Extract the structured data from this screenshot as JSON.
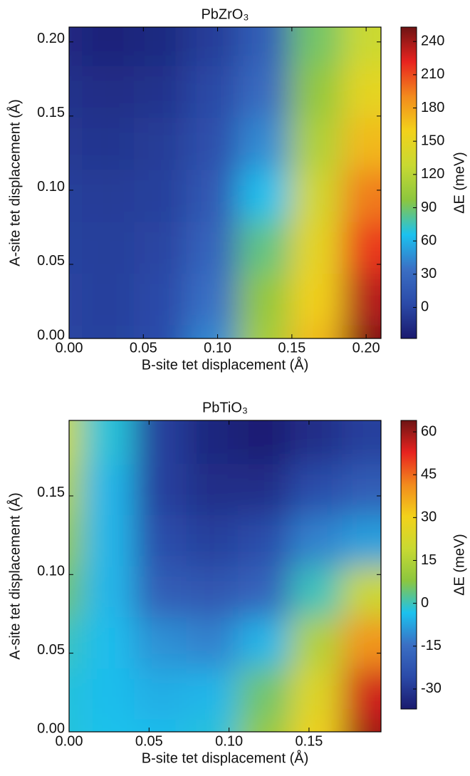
{
  "chart_data": [
    {
      "type": "heatmap",
      "title": "PbZrO₃",
      "xlabel": "B-site tet displacement (Å)",
      "ylabel": "A-site tet displacement (Å)",
      "colorbar_label": "ΔE (meV)",
      "x": [
        0,
        0.035,
        0.07,
        0.105,
        0.14,
        0.175,
        0.21
      ],
      "y": [
        0,
        0.035,
        0.07,
        0.105,
        0.14,
        0.175,
        0.21
      ],
      "z": [
        [
          0,
          -2,
          5,
          45,
          110,
          170,
          250
        ],
        [
          0,
          -3,
          3,
          35,
          100,
          160,
          235
        ],
        [
          -2,
          -4,
          0,
          25,
          85,
          150,
          215
        ],
        [
          -4,
          -6,
          -3,
          15,
          65,
          135,
          195
        ],
        [
          -8,
          -10,
          -6,
          8,
          45,
          115,
          170
        ],
        [
          -12,
          -15,
          -12,
          2,
          30,
          100,
          150
        ],
        [
          -16,
          -22,
          -18,
          -5,
          20,
          90,
          130
        ]
      ],
      "xlim": [
        0,
        0.21
      ],
      "ylim": [
        0,
        0.21
      ],
      "xticks": [
        {
          "value": 0,
          "label": "0.00"
        },
        {
          "value": 0.05,
          "label": "0.05"
        },
        {
          "value": 0.1,
          "label": "0.10"
        },
        {
          "value": 0.15,
          "label": "0.15"
        },
        {
          "value": 0.2,
          "label": "0.20"
        }
      ],
      "yticks": [
        {
          "value": 0,
          "label": "0.00"
        },
        {
          "value": 0.05,
          "label": "0.05"
        },
        {
          "value": 0.1,
          "label": "0.10"
        },
        {
          "value": 0.15,
          "label": "0.15"
        },
        {
          "value": 0.2,
          "label": "0.20"
        }
      ],
      "clim": [
        -28,
        253
      ],
      "cticks": [
        0,
        30,
        60,
        90,
        120,
        150,
        180,
        210,
        240
      ],
      "colormap": [
        "#1a1a6e",
        "#2b4aa8",
        "#3a6fc4",
        "#1bc2ef",
        "#8cc63f",
        "#c8d932",
        "#f2d21b",
        "#f28a1d",
        "#e8231f",
        "#6e1414"
      ]
    },
    {
      "type": "heatmap",
      "title": "PbTiO₃",
      "xlabel": "B-site tet displacement (Å)",
      "ylabel": "A-site tet displacement (Å)",
      "colorbar_label": "ΔE (meV)",
      "x": [
        0,
        0.0325,
        0.065,
        0.0975,
        0.13,
        0.1625,
        0.195
      ],
      "y": [
        0,
        0.0325,
        0.065,
        0.0975,
        0.13,
        0.1625,
        0.195
      ],
      "z": [
        [
          -2,
          -3,
          -4,
          -2,
          10,
          30,
          60
        ],
        [
          -2,
          -4,
          -6,
          -5,
          5,
          25,
          55
        ],
        [
          0,
          -4,
          -10,
          -12,
          -5,
          15,
          40
        ],
        [
          5,
          -5,
          -20,
          -22,
          -18,
          0,
          20
        ],
        [
          10,
          -5,
          -25,
          -28,
          -25,
          -12,
          -8
        ],
        [
          15,
          -5,
          -28,
          -32,
          -32,
          -25,
          -20
        ],
        [
          20,
          -2,
          -28,
          -34,
          -36,
          -32,
          -28
        ]
      ],
      "xlim": [
        0,
        0.195
      ],
      "ylim": [
        0,
        0.198
      ],
      "xticks": [
        {
          "value": 0,
          "label": "0.00"
        },
        {
          "value": 0.05,
          "label": "0.05"
        },
        {
          "value": 0.1,
          "label": "0.10"
        },
        {
          "value": 0.15,
          "label": "0.15"
        }
      ],
      "yticks": [
        {
          "value": 0,
          "label": "0.00"
        },
        {
          "value": 0.05,
          "label": "0.05"
        },
        {
          "value": 0.1,
          "label": "0.10"
        },
        {
          "value": 0.15,
          "label": "0.15"
        }
      ],
      "clim": [
        -37,
        64
      ],
      "cticks": [
        -30,
        -15,
        0,
        15,
        30,
        45,
        60
      ],
      "colormap": [
        "#1a1a6e",
        "#2b4aa8",
        "#3a6fc4",
        "#1bc2ef",
        "#8cc63f",
        "#c8d932",
        "#f2d21b",
        "#f28a1d",
        "#e8231f",
        "#6e1414"
      ]
    }
  ]
}
